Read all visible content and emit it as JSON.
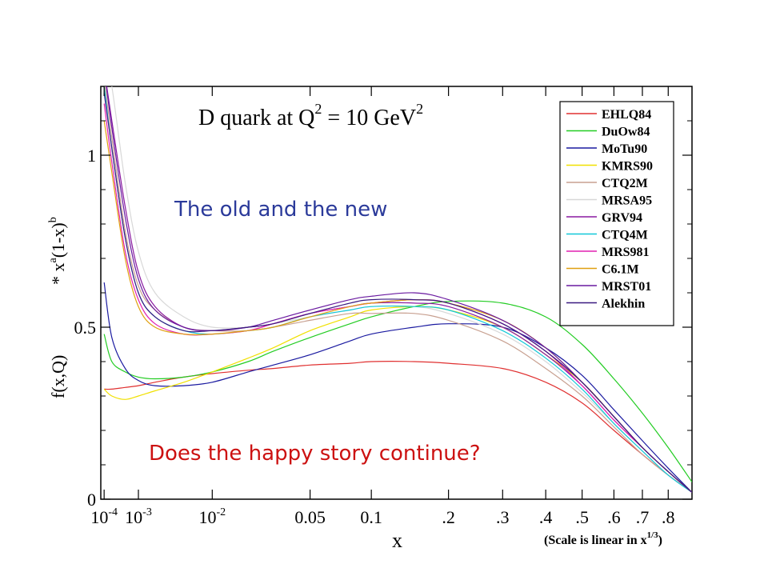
{
  "chart_data": {
    "type": "line",
    "title": "D quark at Q",
    "title_sup": "2",
    "title_mid": " = 10 GeV",
    "title_end_sup": "2",
    "ylabel_main": "f(x,Q)",
    "ylabel_star": "* x",
    "ylabel_a": "a",
    "ylabel_mid": "(1-x)",
    "ylabel_b": "b",
    "xlabel": "x",
    "scale_note": "(Scale is linear in x",
    "scale_note_sup": "1/3",
    "scale_note_end": ")",
    "ylim": [
      0,
      1.2
    ],
    "xlim": [
      7e-05,
      0.9
    ],
    "x_scale": "cube-root",
    "y_ticks": [
      {
        "v": 0,
        "label": "0"
      },
      {
        "v": 0.5,
        "label": "0.5"
      },
      {
        "v": 1,
        "label": "1"
      }
    ],
    "x_ticks": [
      {
        "v": 0.0001,
        "label": "10",
        "sup": "-4"
      },
      {
        "v": 0.001,
        "label": "10",
        "sup": "-3"
      },
      {
        "v": 0.01,
        "label": "10",
        "sup": "-2"
      },
      {
        "v": 0.05,
        "label": "0.05"
      },
      {
        "v": 0.1,
        "label": "0.1"
      },
      {
        "v": 0.2,
        "label": ".2"
      },
      {
        "v": 0.3,
        "label": ".3"
      },
      {
        "v": 0.4,
        "label": ".4"
      },
      {
        "v": 0.5,
        "label": ".5"
      },
      {
        "v": 0.6,
        "label": ".6"
      },
      {
        "v": 0.7,
        "label": ".7"
      },
      {
        "v": 0.8,
        "label": ".8"
      }
    ],
    "x": [
      0.0001,
      0.0002,
      0.0005,
      0.001,
      0.002,
      0.005,
      0.01,
      0.02,
      0.03,
      0.05,
      0.08,
      0.1,
      0.15,
      0.2,
      0.3,
      0.4,
      0.5,
      0.6,
      0.7,
      0.8,
      0.9
    ],
    "series": [
      {
        "name": "EHLQ84",
        "color": "#e03030",
        "values": [
          0.32,
          0.32,
          0.325,
          0.33,
          0.34,
          0.355,
          0.365,
          0.375,
          0.38,
          0.39,
          0.395,
          0.4,
          0.4,
          0.395,
          0.38,
          0.34,
          0.28,
          0.2,
          0.13,
          0.07,
          0.02
        ]
      },
      {
        "name": "DuOw84",
        "color": "#22cc22",
        "values": [
          0.48,
          0.4,
          0.37,
          0.355,
          0.35,
          0.355,
          0.37,
          0.4,
          0.43,
          0.47,
          0.51,
          0.53,
          0.56,
          0.575,
          0.57,
          0.53,
          0.45,
          0.35,
          0.25,
          0.15,
          0.05
        ]
      },
      {
        "name": "MoTu90",
        "color": "#1a1aa0",
        "values": [
          0.63,
          0.47,
          0.38,
          0.345,
          0.33,
          0.33,
          0.34,
          0.37,
          0.39,
          0.42,
          0.46,
          0.48,
          0.5,
          0.51,
          0.5,
          0.44,
          0.36,
          0.26,
          0.17,
          0.09,
          0.02
        ]
      },
      {
        "name": "KMRS90",
        "color": "#f0e000",
        "values": [
          0.32,
          0.3,
          0.29,
          0.3,
          0.315,
          0.34,
          0.37,
          0.41,
          0.44,
          0.49,
          0.53,
          0.55,
          0.56,
          0.55,
          0.5,
          0.42,
          0.34,
          0.24,
          0.15,
          0.08,
          0.02
        ]
      },
      {
        "name": "CTQ2M",
        "color": "#c8a090",
        "values": [
          1.22,
          1.05,
          0.78,
          0.62,
          0.55,
          0.5,
          0.49,
          0.49,
          0.5,
          0.52,
          0.54,
          0.54,
          0.54,
          0.52,
          0.46,
          0.38,
          0.3,
          0.21,
          0.13,
          0.07,
          0.02
        ]
      },
      {
        "name": "MRSA95",
        "color": "#d8d8d8",
        "values": [
          1.3,
          1.2,
          0.92,
          0.72,
          0.6,
          0.53,
          0.5,
          0.5,
          0.51,
          0.53,
          0.55,
          0.56,
          0.56,
          0.54,
          0.48,
          0.4,
          0.31,
          0.22,
          0.14,
          0.07,
          0.02
        ]
      },
      {
        "name": "GRV94",
        "color": "#8a1aa0",
        "values": [
          1.25,
          1.1,
          0.85,
          0.66,
          0.56,
          0.5,
          0.49,
          0.5,
          0.51,
          0.54,
          0.56,
          0.57,
          0.57,
          0.56,
          0.5,
          0.42,
          0.33,
          0.23,
          0.15,
          0.08,
          0.02
        ]
      },
      {
        "name": "CTQ4M",
        "color": "#10c8d8",
        "values": [
          1.2,
          1.02,
          0.76,
          0.6,
          0.53,
          0.49,
          0.48,
          0.49,
          0.5,
          0.53,
          0.55,
          0.56,
          0.56,
          0.55,
          0.49,
          0.41,
          0.32,
          0.22,
          0.14,
          0.07,
          0.02
        ]
      },
      {
        "name": "MRS981",
        "color": "#e020b0",
        "values": [
          1.15,
          0.98,
          0.72,
          0.58,
          0.51,
          0.48,
          0.48,
          0.49,
          0.51,
          0.54,
          0.56,
          0.57,
          0.58,
          0.57,
          0.51,
          0.43,
          0.33,
          0.23,
          0.15,
          0.08,
          0.02
        ]
      },
      {
        "name": "C6.1M",
        "color": "#e0a010",
        "values": [
          1.1,
          0.95,
          0.7,
          0.56,
          0.5,
          0.48,
          0.48,
          0.49,
          0.5,
          0.53,
          0.56,
          0.57,
          0.58,
          0.57,
          0.52,
          0.44,
          0.34,
          0.24,
          0.15,
          0.08,
          0.02
        ]
      },
      {
        "name": "MRST01",
        "color": "#6a1aa0",
        "values": [
          1.25,
          1.08,
          0.82,
          0.64,
          0.55,
          0.5,
          0.49,
          0.5,
          0.52,
          0.55,
          0.58,
          0.59,
          0.6,
          0.58,
          0.52,
          0.44,
          0.34,
          0.24,
          0.15,
          0.08,
          0.02
        ]
      },
      {
        "name": "Alekhin",
        "color": "#3a1a80",
        "values": [
          1.18,
          1.02,
          0.76,
          0.6,
          0.53,
          0.49,
          0.49,
          0.5,
          0.51,
          0.54,
          0.57,
          0.58,
          0.58,
          0.57,
          0.51,
          0.43,
          0.34,
          0.24,
          0.15,
          0.08,
          0.02
        ]
      }
    ],
    "annotations": {
      "old_new": "The old and the new",
      "happy": "Does the happy story continue?"
    },
    "colors": {
      "annotation_blue": "#2b3a9a",
      "annotation_red": "#cc1111"
    },
    "legend_placement": "top-right",
    "grid": false
  }
}
